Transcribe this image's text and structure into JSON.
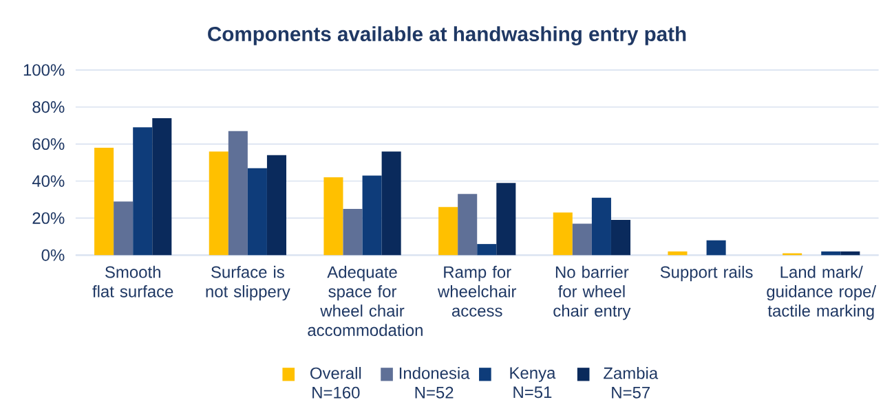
{
  "chart_data": {
    "type": "bar",
    "title": "Components available at handwashing entry path",
    "categories": [
      "Smooth flat surface",
      "Surface is not slippery",
      "Adequate space for wheel chair accommodation",
      "Ramp for wheelchair access",
      "No barrier for wheel chair entry",
      "Support rails",
      "Land mark/ guidance rope/ tactile marking"
    ],
    "series": [
      {
        "name": "Overall N=160",
        "color": "#ffc000",
        "values": [
          58,
          56,
          42,
          26,
          23,
          2,
          1
        ]
      },
      {
        "name": "Indonesia N=52",
        "color": "#5f7097",
        "values": [
          29,
          67,
          25,
          33,
          17,
          0,
          0
        ]
      },
      {
        "name": "Kenya N=51",
        "color": "#0e3c7a",
        "values": [
          69,
          47,
          43,
          6,
          31,
          8,
          2
        ]
      },
      {
        "name": "Zambia N=57",
        "color": "#0a2a5c",
        "values": [
          74,
          54,
          56,
          39,
          19,
          0,
          2
        ]
      }
    ],
    "ylim": [
      0,
      100
    ],
    "yticks": [
      {
        "value": 0,
        "label": "0%"
      },
      {
        "value": 20,
        "label": "20%"
      },
      {
        "value": 40,
        "label": "40%"
      },
      {
        "value": 60,
        "label": "60%"
      },
      {
        "value": 80,
        "label": "80%"
      },
      {
        "value": 100,
        "label": "100%"
      }
    ],
    "grid": "y",
    "legend": "bottom"
  }
}
